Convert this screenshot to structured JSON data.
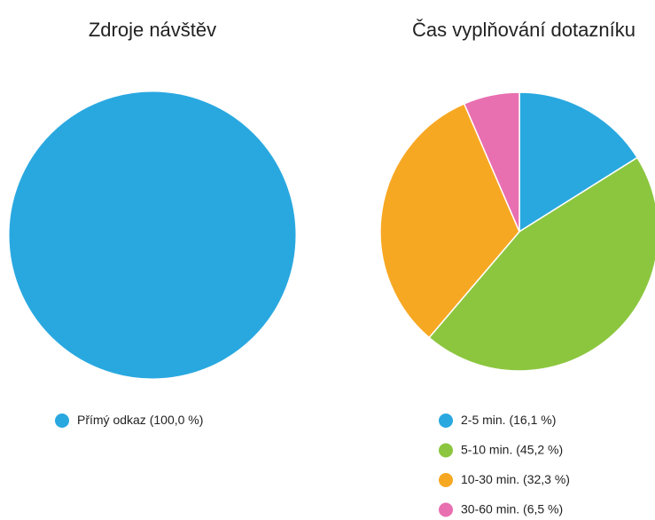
{
  "chart_data": [
    {
      "type": "pie",
      "title": "Zdroje návštěv",
      "categories": [
        "Přímý odkaz"
      ],
      "values": [
        100.0
      ],
      "value_labels": [
        "(100,0 %)"
      ],
      "colors": [
        "#29a8e0"
      ]
    },
    {
      "type": "pie",
      "title": "Čas vyplňování dotazníku",
      "categories": [
        "2-5 min.",
        "5-10 min.",
        "10-30 min.",
        "30-60 min."
      ],
      "values": [
        16.1,
        45.2,
        32.3,
        6.5
      ],
      "value_labels": [
        "(16,1 %)",
        "(45,2 %)",
        "(32,3 %)",
        "(6,5 %)"
      ],
      "colors": [
        "#29a8e0",
        "#8cc63f",
        "#f7a823",
        "#e86fb0"
      ]
    }
  ]
}
